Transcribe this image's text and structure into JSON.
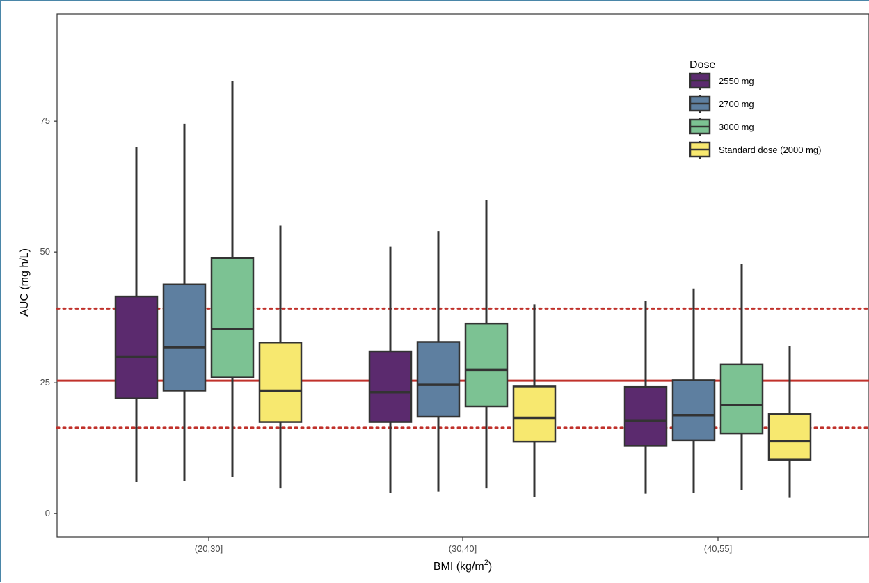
{
  "chart_data": {
    "type": "box",
    "xlabel": "BMI (kg/m",
    "xlabel_sup": "2",
    "xlabel_close": ")",
    "ylabel": "AUC (mg h/L)",
    "ylim": [
      -4.5,
      95.5
    ],
    "y_ticks": [
      0,
      25,
      50,
      75
    ],
    "y_tick_labels": [
      "0",
      "25",
      "50",
      "75"
    ],
    "categories": [
      "(20,30]",
      "(30,40]",
      "(40,55]"
    ],
    "legend": {
      "title": "Dose",
      "position": "top-right",
      "entries": [
        "2550 mg",
        "2700 mg",
        "3000 mg",
        "Standard dose (2000 mg)"
      ]
    },
    "series": [
      {
        "name": "2550 mg",
        "color": "#5b2a6e",
        "boxes": [
          {
            "whisker_low": 6,
            "q1": 22,
            "median": 30,
            "q3": 41.5,
            "whisker_high": 70
          },
          {
            "whisker_low": 4,
            "q1": 17.5,
            "median": 23.2,
            "q3": 31,
            "whisker_high": 51
          },
          {
            "whisker_low": 3.8,
            "q1": 13,
            "median": 17.8,
            "q3": 24.2,
            "whisker_high": 40.7
          }
        ]
      },
      {
        "name": "2700 mg",
        "color": "#5e7fa0",
        "boxes": [
          {
            "whisker_low": 6.2,
            "q1": 23.5,
            "median": 31.8,
            "q3": 43.8,
            "whisker_high": 74.5
          },
          {
            "whisker_low": 4.2,
            "q1": 18.5,
            "median": 24.6,
            "q3": 32.8,
            "whisker_high": 54
          },
          {
            "whisker_low": 4,
            "q1": 14,
            "median": 18.8,
            "q3": 25.5,
            "whisker_high": 43
          }
        ]
      },
      {
        "name": "3000 mg",
        "color": "#7cc293",
        "boxes": [
          {
            "whisker_low": 7,
            "q1": 26,
            "median": 35.3,
            "q3": 48.8,
            "whisker_high": 82.7
          },
          {
            "whisker_low": 4.8,
            "q1": 20.5,
            "median": 27.5,
            "q3": 36.3,
            "whisker_high": 60
          },
          {
            "whisker_low": 4.5,
            "q1": 15.3,
            "median": 20.8,
            "q3": 28.5,
            "whisker_high": 47.7
          }
        ]
      },
      {
        "name": "Standard dose (2000 mg)",
        "color": "#f7e86f",
        "boxes": [
          {
            "whisker_low": 4.8,
            "q1": 17.5,
            "median": 23.5,
            "q3": 32.7,
            "whisker_high": 55
          },
          {
            "whisker_low": 3.1,
            "q1": 13.7,
            "median": 18.3,
            "q3": 24.3,
            "whisker_high": 40
          },
          {
            "whisker_low": 3,
            "q1": 10.3,
            "median": 13.8,
            "q3": 19,
            "whisker_high": 32
          }
        ]
      }
    ],
    "reference_lines": [
      {
        "value": 25.4,
        "style": "solid",
        "color": "#c0312b"
      },
      {
        "value": 39.2,
        "style": "dotted",
        "color": "#c0312b"
      },
      {
        "value": 16.4,
        "style": "dotted",
        "color": "#c0312b"
      }
    ],
    "grid": false
  }
}
